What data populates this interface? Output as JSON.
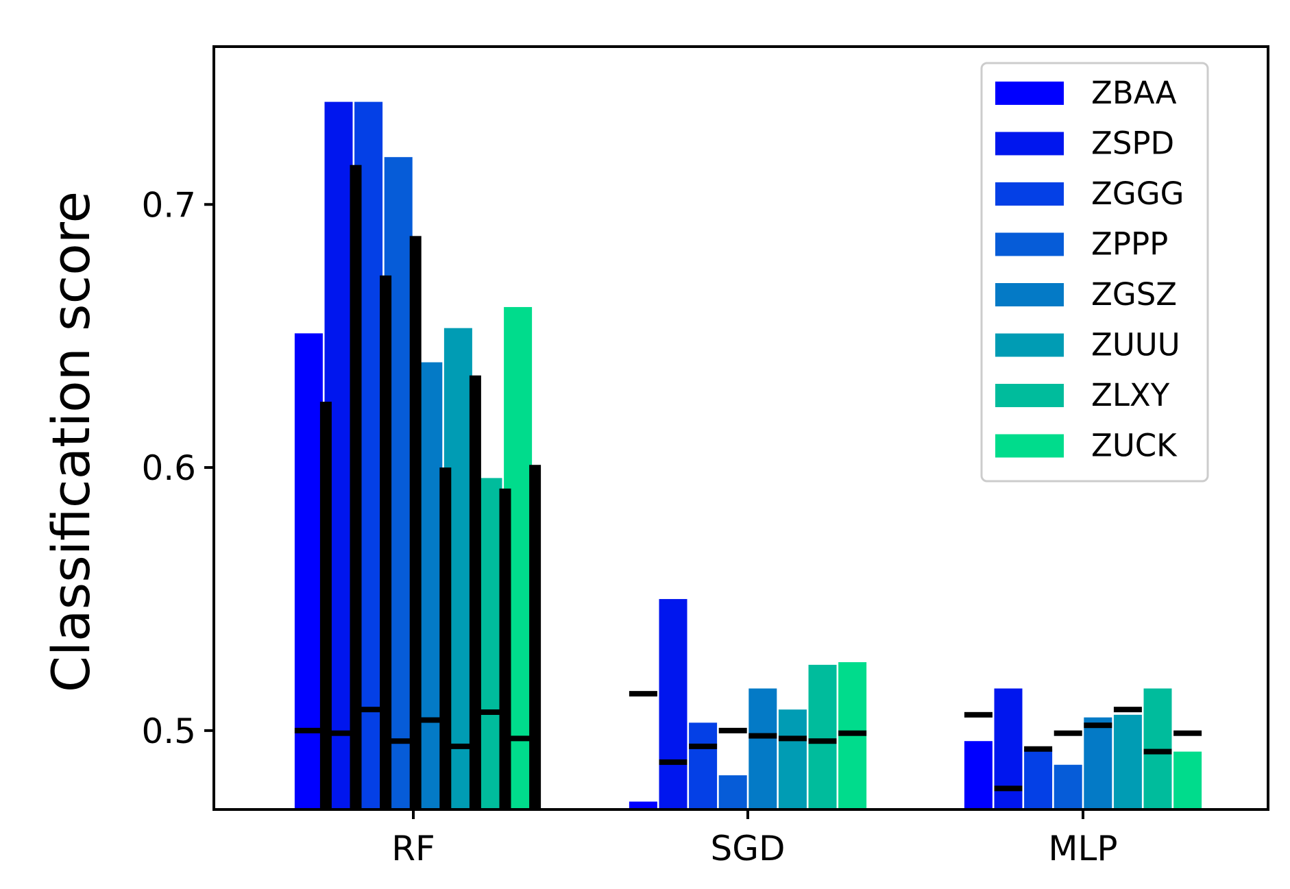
{
  "chart_data": {
    "type": "bar",
    "title": "",
    "xlabel": "",
    "ylabel": "Classification score",
    "ylim": [
      0.47,
      0.76
    ],
    "yticks": [
      0.5,
      0.6,
      0.7
    ],
    "ytick_labels": [
      "0.5",
      "0.6",
      "0.7"
    ],
    "categories": [
      "RF",
      "SGD",
      "MLP"
    ],
    "grid": false,
    "legend_position": "top-right",
    "series": [
      {
        "name": "ZBAA",
        "color": "#0000ff",
        "values": [
          0.651,
          0.473,
          0.496
        ],
        "baseline": [
          0.5,
          0.514,
          0.506
        ]
      },
      {
        "name": "ZSPD",
        "color": "#0016ee",
        "values": [
          0.739,
          0.55,
          0.516
        ],
        "baseline": [
          0.499,
          0.488,
          0.478
        ]
      },
      {
        "name": "ZGGG",
        "color": "#0440e6",
        "values": [
          0.739,
          0.503,
          0.493
        ],
        "baseline": [
          0.508,
          0.494,
          0.493
        ]
      },
      {
        "name": "ZPPP",
        "color": "#065cd8",
        "values": [
          0.718,
          0.483,
          0.487
        ],
        "baseline": [
          0.496,
          0.5,
          0.499
        ]
      },
      {
        "name": "ZGSZ",
        "color": "#047ac6",
        "values": [
          0.64,
          0.516,
          0.505
        ],
        "baseline": [
          0.504,
          0.498,
          0.502
        ]
      },
      {
        "name": "ZUUU",
        "color": "#009cb4",
        "values": [
          0.653,
          0.508,
          0.506
        ],
        "baseline": [
          0.494,
          0.497,
          0.508
        ]
      },
      {
        "name": "ZLXY",
        "color": "#00bc9c",
        "values": [
          0.596,
          0.525,
          0.516
        ],
        "baseline": [
          0.507,
          0.496,
          0.492
        ]
      },
      {
        "name": "ZUCK",
        "color": "#00dc8c",
        "values": [
          0.661,
          0.526,
          0.492
        ],
        "baseline": [
          0.497,
          0.499,
          0.499
        ]
      }
    ],
    "overlay_black_bars": [
      {
        "after_series": "ZBAA",
        "category": "RF",
        "value": 0.625
      },
      {
        "after_series": "ZSPD",
        "category": "RF",
        "value": 0.715
      },
      {
        "after_series": "ZGGG",
        "category": "RF",
        "value": 0.673
      },
      {
        "after_series": "ZPPP",
        "category": "RF",
        "value": 0.688
      },
      {
        "after_series": "ZGSZ",
        "category": "RF",
        "value": 0.6
      },
      {
        "after_series": "ZUUU",
        "category": "RF",
        "value": 0.635
      },
      {
        "after_series": "ZLXY",
        "category": "RF",
        "value": 0.592
      },
      {
        "after_series": "ZUCK",
        "category": "RF",
        "value": 0.601
      }
    ]
  }
}
